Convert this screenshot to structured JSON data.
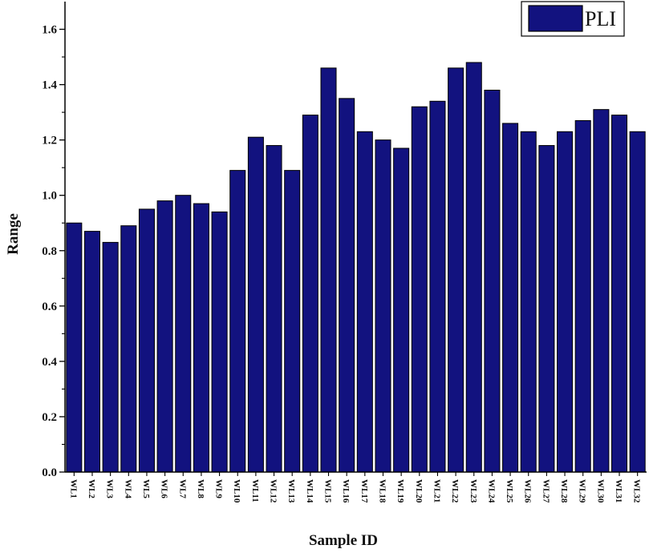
{
  "chart_data": {
    "type": "bar",
    "xlabel": "Sample ID",
    "ylabel": "Range",
    "ylim": [
      0,
      1.7
    ],
    "yticks": [
      "0.0",
      "0.2",
      "0.4",
      "0.6",
      "0.8",
      "1.0",
      "1.2",
      "1.4",
      "1.6"
    ],
    "ytick_values": [
      0,
      0.2,
      0.4,
      0.6,
      0.8,
      1.0,
      1.2,
      1.4,
      1.6
    ],
    "grid": false,
    "legend_position": "top-right",
    "categories": [
      "WL1",
      "WL2",
      "WL3",
      "WL4",
      "WL5",
      "WL6",
      "WL7",
      "WL8",
      "WL9",
      "WL10",
      "WL11",
      "WL12",
      "WL13",
      "WL14",
      "WL15",
      "WL16",
      "WL17",
      "WL18",
      "WL19",
      "WL20",
      "WL21",
      "WL22",
      "WL23",
      "WL24",
      "WL25",
      "WL26",
      "WL27",
      "WL28",
      "WL29",
      "WL30",
      "WL31",
      "WL32"
    ],
    "series": [
      {
        "name": "PLI",
        "color": "#12127f",
        "values": [
          0.9,
          0.87,
          0.83,
          0.89,
          0.95,
          0.98,
          1.0,
          0.97,
          0.94,
          1.09,
          1.21,
          1.18,
          1.09,
          1.29,
          1.46,
          1.35,
          1.23,
          1.2,
          1.17,
          1.32,
          1.34,
          1.46,
          1.48,
          1.38,
          1.26,
          1.23,
          1.18,
          1.23,
          1.27,
          1.31,
          1.29,
          1.23
        ]
      }
    ]
  }
}
